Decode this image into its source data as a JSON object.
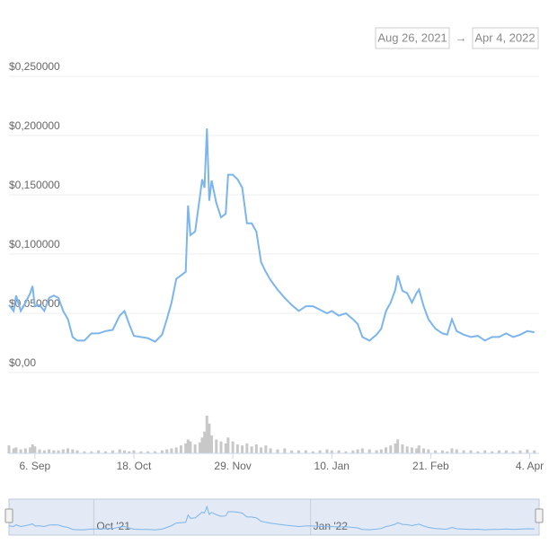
{
  "range": {
    "from": "Aug 26, 2021",
    "separator": "→",
    "to": "Apr 4, 2022"
  },
  "chart_data": {
    "type": "line",
    "x": [
      "2021-08-26",
      "2021-08-28",
      "2021-08-29",
      "2021-08-31",
      "2021-09-02",
      "2021-09-04",
      "2021-09-05",
      "2021-09-06",
      "2021-09-08",
      "2021-09-10",
      "2021-09-12",
      "2021-09-14",
      "2021-09-16",
      "2021-09-18",
      "2021-09-20",
      "2021-09-22",
      "2021-09-24",
      "2021-09-27",
      "2021-09-30",
      "2021-10-03",
      "2021-10-06",
      "2021-10-09",
      "2021-10-12",
      "2021-10-14",
      "2021-10-16",
      "2021-10-18",
      "2021-10-21",
      "2021-10-24",
      "2021-10-27",
      "2021-10-30",
      "2021-11-01",
      "2021-11-03",
      "2021-11-05",
      "2021-11-07",
      "2021-11-09",
      "2021-11-10",
      "2021-11-11",
      "2021-11-13",
      "2021-11-15",
      "2021-11-16",
      "2021-11-17",
      "2021-11-18",
      "2021-11-19",
      "2021-11-20",
      "2021-11-22",
      "2021-11-24",
      "2021-11-26",
      "2021-11-27",
      "2021-11-29",
      "2021-12-01",
      "2021-12-03",
      "2021-12-05",
      "2021-12-07",
      "2021-12-09",
      "2021-12-11",
      "2021-12-13",
      "2021-12-15",
      "2021-12-18",
      "2021-12-21",
      "2021-12-24",
      "2021-12-27",
      "2021-12-30",
      "2022-01-02",
      "2022-01-05",
      "2022-01-08",
      "2022-01-10",
      "2022-01-13",
      "2022-01-16",
      "2022-01-19",
      "2022-01-21",
      "2022-01-23",
      "2022-01-26",
      "2022-01-29",
      "2022-01-31",
      "2022-02-02",
      "2022-02-04",
      "2022-02-06",
      "2022-02-07",
      "2022-02-09",
      "2022-02-11",
      "2022-02-13",
      "2022-02-15",
      "2022-02-16",
      "2022-02-18",
      "2022-02-20",
      "2022-02-23",
      "2022-02-26",
      "2022-02-28",
      "2022-03-02",
      "2022-03-04",
      "2022-03-07",
      "2022-03-10",
      "2022-03-13",
      "2022-03-16",
      "2022-03-19",
      "2022-03-22",
      "2022-03-25",
      "2022-03-28",
      "2022-03-31",
      "2022-04-03",
      "2022-04-06"
    ],
    "series": [
      {
        "color": "#7cb5ec",
        "values": [
          0.057,
          0.052,
          0.065,
          0.052,
          0.059,
          0.067,
          0.073,
          0.056,
          0.057,
          0.052,
          0.063,
          0.065,
          0.063,
          0.052,
          0.045,
          0.03,
          0.027,
          0.027,
          0.033,
          0.033,
          0.035,
          0.036,
          0.048,
          0.052,
          0.041,
          0.031,
          0.03,
          0.029,
          0.026,
          0.032,
          0.045,
          0.059,
          0.079,
          0.082,
          0.085,
          0.141,
          0.116,
          0.119,
          0.148,
          0.163,
          0.156,
          0.206,
          0.145,
          0.162,
          0.143,
          0.131,
          0.134,
          0.167,
          0.167,
          0.163,
          0.156,
          0.126,
          0.126,
          0.119,
          0.093,
          0.085,
          0.078,
          0.07,
          0.063,
          0.057,
          0.052,
          0.056,
          0.056,
          0.053,
          0.05,
          0.052,
          0.048,
          0.05,
          0.045,
          0.041,
          0.03,
          0.027,
          0.032,
          0.037,
          0.052,
          0.059,
          0.07,
          0.082,
          0.069,
          0.067,
          0.059,
          0.067,
          0.07,
          0.056,
          0.045,
          0.037,
          0.033,
          0.032,
          0.045,
          0.035,
          0.032,
          0.03,
          0.031,
          0.027,
          0.03,
          0.03,
          0.033,
          0.03,
          0.032,
          0.035,
          0.034
        ]
      }
    ],
    "volume": {
      "color": "#c8c8c8",
      "values": [
        8,
        5,
        6,
        4,
        5,
        6,
        9,
        7,
        4,
        3,
        4,
        3,
        3,
        4,
        5,
        4,
        3,
        2,
        2,
        3,
        2,
        3,
        4,
        3,
        2,
        3,
        2,
        2,
        2,
        3,
        4,
        5,
        6,
        8,
        10,
        14,
        12,
        9,
        11,
        16,
        22,
        38,
        30,
        18,
        14,
        12,
        10,
        16,
        12,
        9,
        8,
        10,
        7,
        9,
        6,
        8,
        5,
        4,
        5,
        3,
        3,
        3,
        2,
        3,
        4,
        3,
        3,
        2,
        3,
        4,
        5,
        4,
        3,
        4,
        6,
        8,
        10,
        14,
        9,
        7,
        6,
        5,
        8,
        5,
        4,
        3,
        3,
        2,
        5,
        4,
        3,
        3,
        2,
        3,
        2,
        3,
        3,
        2,
        3,
        4,
        3
      ]
    },
    "xlim": [
      "2021-08-26",
      "2022-04-08"
    ],
    "xticks": [
      {
        "value": "2021-09-06",
        "label": "6. Sep"
      },
      {
        "value": "2021-10-18",
        "label": "18. Oct"
      },
      {
        "value": "2021-11-29",
        "label": "29. Nov"
      },
      {
        "value": "2022-01-10",
        "label": "10. Jan"
      },
      {
        "value": "2022-02-21",
        "label": "21. Feb"
      },
      {
        "value": "2022-04-04",
        "label": "4. Apr"
      }
    ],
    "ylim": [
      0,
      0.25
    ],
    "yticks": [
      {
        "value": 0,
        "label": "$0,00"
      },
      {
        "value": 0.05,
        "label": "$0,050000"
      },
      {
        "value": 0.1,
        "label": "$0,100000"
      },
      {
        "value": 0.15,
        "label": "$0,150000"
      },
      {
        "value": 0.2,
        "label": "$0,200000"
      },
      {
        "value": 0.25,
        "label": "$0,250000"
      }
    ],
    "grid": true,
    "navigator_ticks": [
      {
        "value": "2021-10-01",
        "label": "Oct '21"
      },
      {
        "value": "2022-01-01",
        "label": "Jan '22"
      }
    ]
  }
}
